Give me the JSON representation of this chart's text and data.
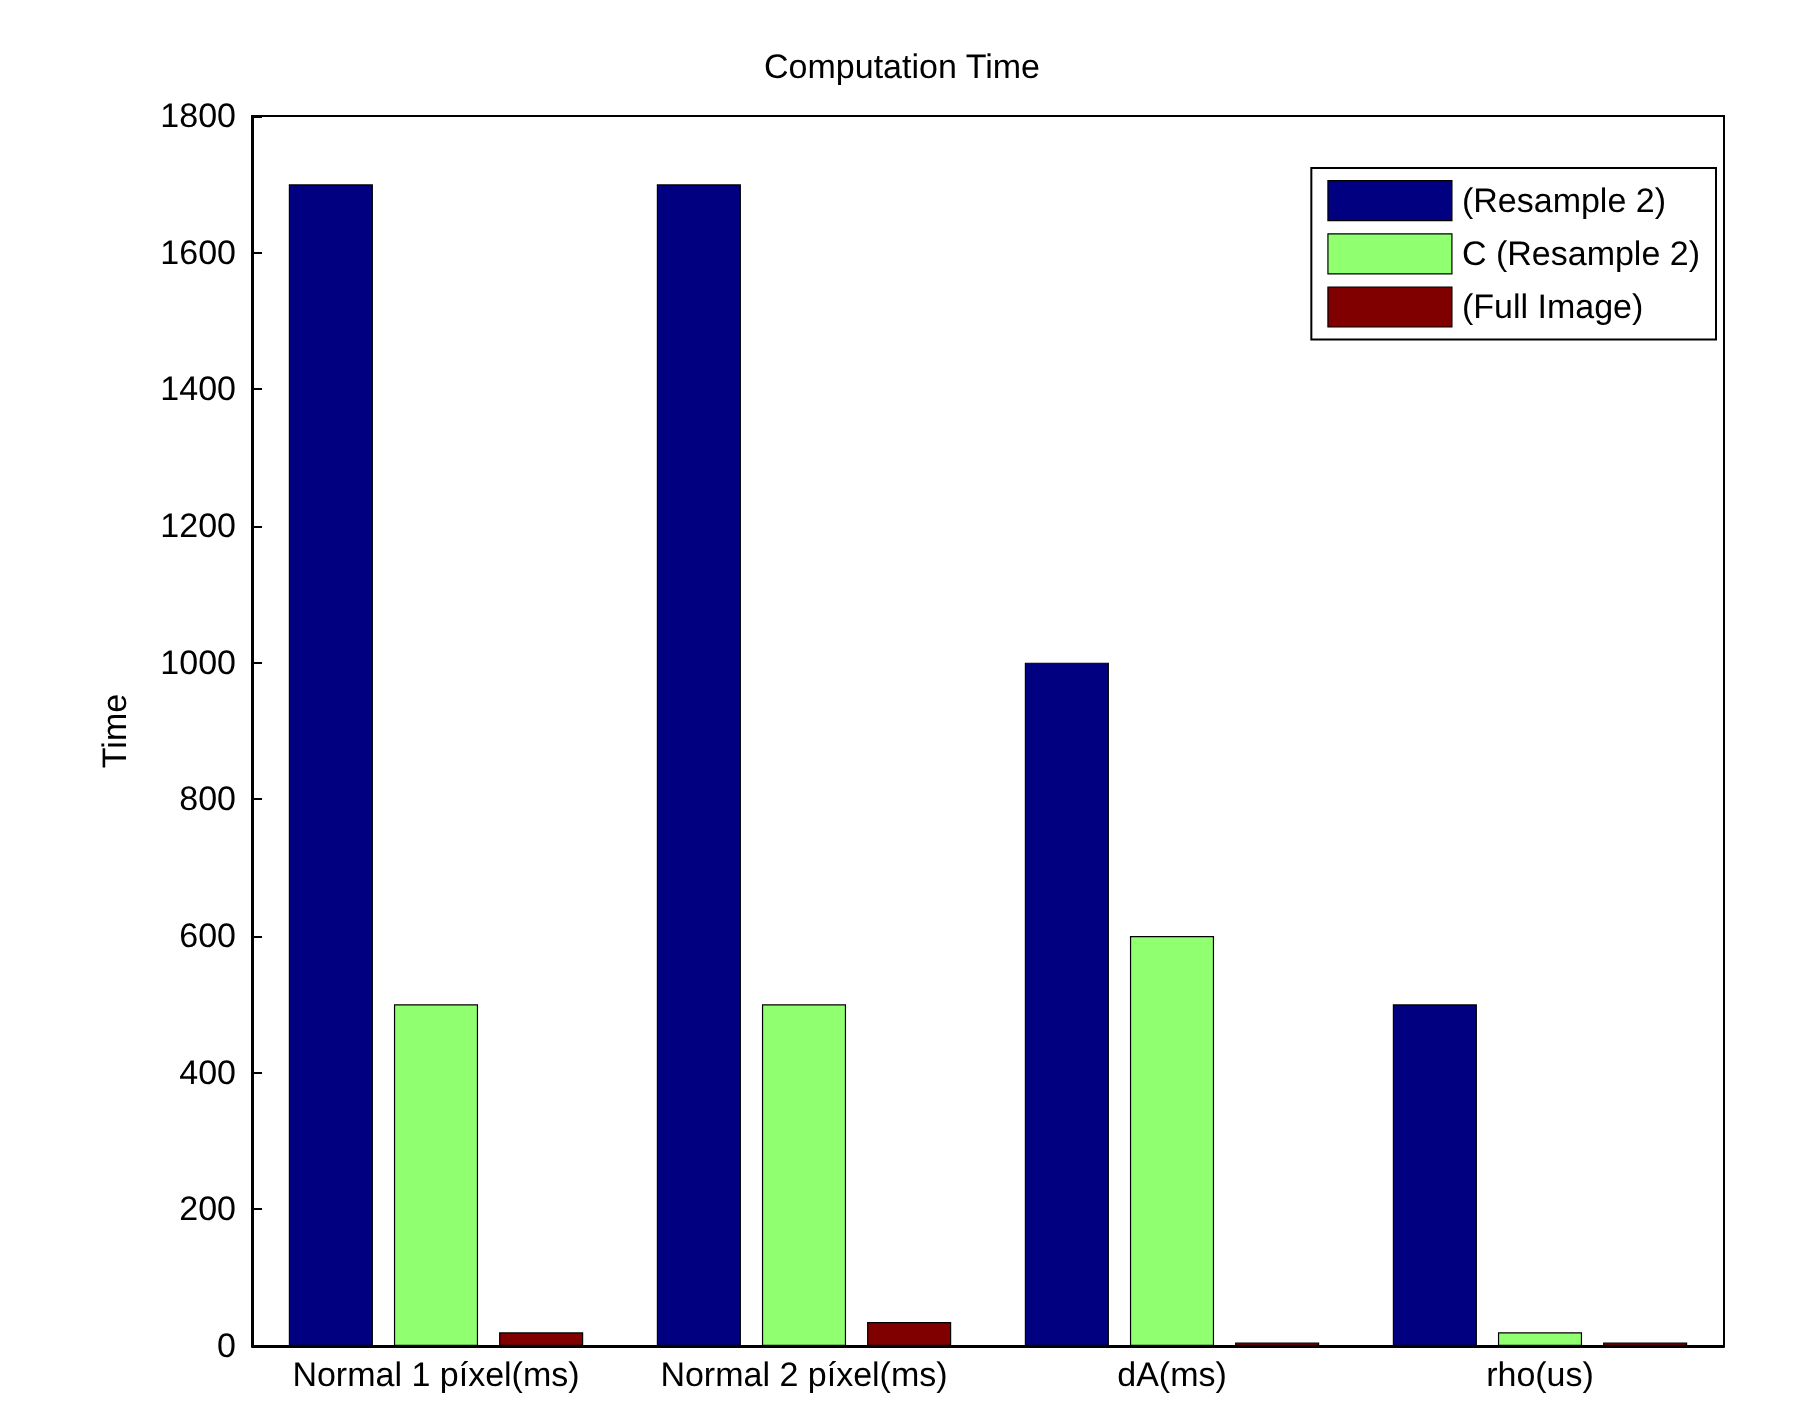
{
  "chart_data": {
    "type": "bar",
    "title": "Computation Time",
    "ylabel": "Time",
    "categories": [
      "Normal 1 píxel(ms)",
      "Normal 2 píxel(ms)",
      "dA(ms)",
      "rho(us)"
    ],
    "series": [
      {
        "name": "(Resample 2)",
        "color": "#000080",
        "values": [
          1700,
          1700,
          1000,
          500
        ]
      },
      {
        "name": "C (Resample 2)",
        "color": "#90ff70",
        "values": [
          500,
          500,
          600,
          20
        ]
      },
      {
        "name": "(Full Image)",
        "color": "#800000",
        "values": [
          20,
          35,
          5,
          5
        ]
      }
    ],
    "ylim": [
      0,
      1800
    ],
    "yticks": [
      0,
      200,
      400,
      600,
      800,
      1000,
      1200,
      1400,
      1600,
      1800
    ],
    "grid": false,
    "legend": "top right"
  }
}
